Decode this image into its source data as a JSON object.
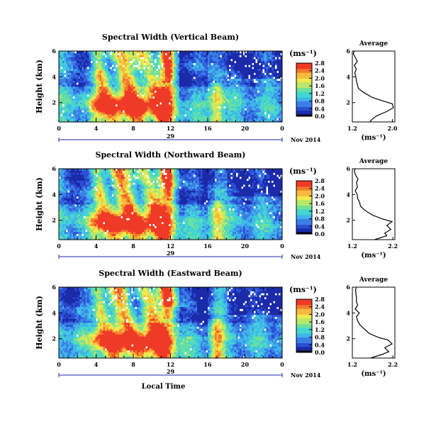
{
  "colors": {
    "colormap": [
      "#000000",
      "#1a2aa8",
      "#2b4fd6",
      "#3a7fe6",
      "#3fb5ea",
      "#43d6d0",
      "#6fe09a",
      "#b8e86a",
      "#f0ea4a",
      "#f8b93a",
      "#f47a2c",
      "#ee3a26"
    ],
    "blank": "#ffffff",
    "axis": "#000000",
    "timebar": "#1a2aa8"
  },
  "chart_data": [
    {
      "type": "heatmap",
      "title": "Spectral Width (Vertical Beam)",
      "ylabel": "Height (km)",
      "xlabel": "",
      "x_ticks": [
        "0",
        "4",
        "8",
        "12",
        "16",
        "20",
        "0"
      ],
      "y_ticks": [
        "2",
        "4",
        "6"
      ],
      "xlim": [
        0,
        24
      ],
      "ylim": [
        0.5,
        6
      ],
      "date_marker": "29",
      "date_label": "Nov 2014",
      "colorbar": {
        "label": "(ms⁻¹)",
        "range": [
          0.0,
          2.8
        ],
        "ticks": [
          "0.0",
          "0.4",
          "0.8",
          "1.2",
          "1.6",
          "2.0",
          "2.4",
          "2.8"
        ]
      },
      "profile": {
        "title": "Average",
        "xlabel": "(ms⁻¹)",
        "x_ticks": [
          "1.2",
          "2.0"
        ],
        "xlim": [
          1.2,
          2.05
        ],
        "y_ticks": [
          "2",
          "4",
          "6"
        ],
        "ylim": [
          0.5,
          6
        ],
        "height": [
          0.5,
          0.8,
          1.0,
          1.3,
          1.6,
          1.9,
          2.1,
          2.4,
          2.8,
          3.1,
          3.4,
          3.7,
          4.0,
          4.3,
          4.6,
          4.9,
          5.2,
          5.5,
          5.8,
          6.0
        ],
        "values": [
          1.55,
          1.62,
          1.7,
          1.88,
          2.02,
          2.0,
          1.84,
          1.6,
          1.42,
          1.32,
          1.3,
          1.28,
          1.27,
          1.25,
          1.28,
          1.24,
          1.3,
          1.26,
          1.22,
          1.24
        ]
      }
    },
    {
      "type": "heatmap",
      "title": "Spectral Width (Northward Beam)",
      "ylabel": "Height (km)",
      "xlabel": "",
      "x_ticks": [
        "0",
        "4",
        "8",
        "12",
        "16",
        "20",
        "0"
      ],
      "y_ticks": [
        "2",
        "4",
        "6"
      ],
      "xlim": [
        0,
        24
      ],
      "ylim": [
        0.5,
        6
      ],
      "date_marker": "29",
      "date_label": "Nov 2014",
      "colorbar": {
        "label": "(ms⁻¹)",
        "range": [
          0.0,
          2.8
        ],
        "ticks": [
          "0.0",
          "0.4",
          "0.8",
          "1.2",
          "1.6",
          "2.0",
          "2.4",
          "2.8"
        ]
      },
      "profile": {
        "title": "Average",
        "xlabel": "(ms⁻¹)",
        "x_ticks": [
          "1.2",
          "2.2"
        ],
        "xlim": [
          1.2,
          2.25
        ],
        "y_ticks": [
          "2",
          "4",
          "6"
        ],
        "ylim": [
          0.5,
          6
        ],
        "height": [
          0.5,
          0.8,
          1.0,
          1.3,
          1.6,
          1.9,
          2.1,
          2.4,
          2.8,
          3.1,
          3.4,
          3.7,
          4.0,
          4.3,
          4.6,
          4.9,
          5.2,
          5.5,
          5.8,
          6.0
        ],
        "values": [
          1.75,
          2.05,
          2.0,
          2.15,
          2.05,
          2.18,
          1.95,
          1.7,
          1.5,
          1.4,
          1.38,
          1.33,
          1.32,
          1.27,
          1.33,
          1.3,
          1.34,
          1.28,
          1.25,
          1.27
        ]
      }
    },
    {
      "type": "heatmap",
      "title": "Spectral Width (Eastward Beam)",
      "ylabel": "Height (km)",
      "xlabel": "Local Time",
      "x_ticks": [
        "0",
        "4",
        "8",
        "12",
        "16",
        "20",
        "0"
      ],
      "y_ticks": [
        "2",
        "4",
        "6"
      ],
      "xlim": [
        0,
        24
      ],
      "ylim": [
        0.5,
        6
      ],
      "date_marker": "29",
      "date_label": "Nov 2014",
      "colorbar": {
        "label": "(ms⁻¹)",
        "range": [
          0.0,
          2.8
        ],
        "ticks": [
          "0.0",
          "0.4",
          "0.8",
          "1.2",
          "1.6",
          "2.0",
          "2.4",
          "2.8"
        ]
      },
      "profile": {
        "title": "Average",
        "xlabel": "(ms⁻¹)",
        "x_ticks": [
          "1.2",
          "2.2"
        ],
        "xlim": [
          1.2,
          2.25
        ],
        "y_ticks": [
          "2",
          "4",
          "6"
        ],
        "ylim": [
          0.5,
          6
        ],
        "height": [
          0.5,
          0.8,
          1.0,
          1.3,
          1.6,
          1.9,
          2.1,
          2.4,
          2.8,
          3.1,
          3.4,
          3.7,
          4.0,
          4.3,
          4.6,
          4.9,
          5.2,
          5.5,
          5.8,
          6.0
        ],
        "values": [
          1.65,
          1.95,
          2.1,
          2.0,
          2.18,
          2.08,
          1.85,
          1.62,
          1.48,
          1.38,
          1.33,
          1.3,
          1.37,
          1.27,
          1.33,
          1.3,
          1.3,
          1.29,
          1.28,
          1.3
        ]
      }
    }
  ]
}
